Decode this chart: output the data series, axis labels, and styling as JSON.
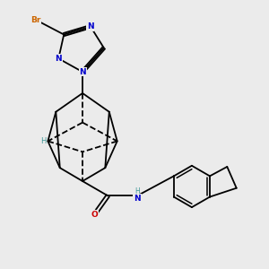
{
  "background_color": "#ebebeb",
  "bond_color": "#000000",
  "atom_colors": {
    "Br": "#cc6600",
    "N": "#0000cc",
    "O": "#cc0000",
    "H": "#3d9696",
    "C": "#000000"
  },
  "figsize": [
    3.0,
    3.0
  ],
  "dpi": 100
}
